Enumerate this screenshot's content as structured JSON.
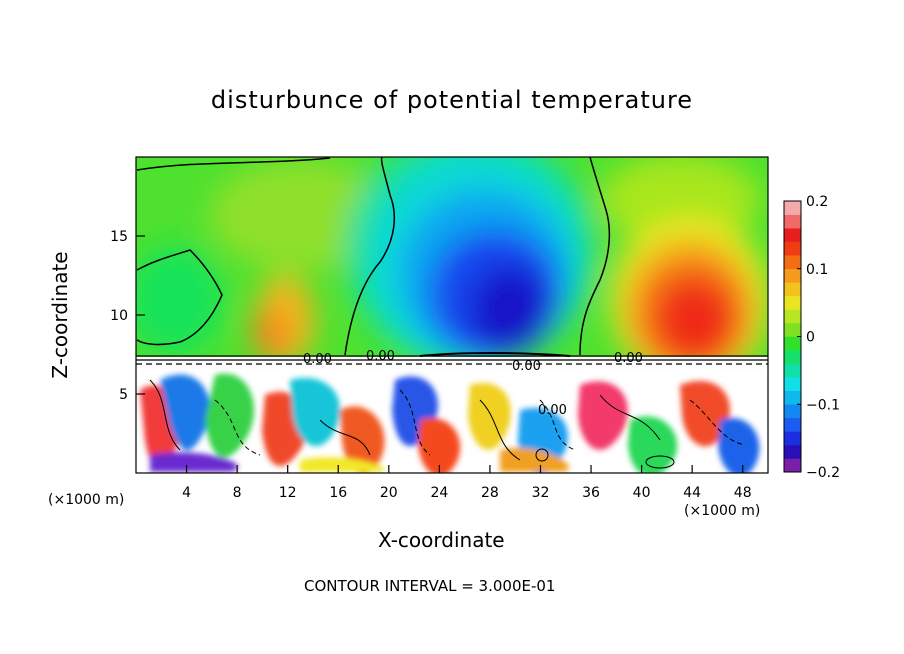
{
  "chart_data": {
    "type": "heatmap",
    "title": "disturbunce of potential temperature",
    "xlabel": "X-coordinate",
    "ylabel": "Z-coordinate",
    "x_unit": "(×1000 m)",
    "x_ticks": [
      4,
      8,
      12,
      16,
      20,
      24,
      28,
      32,
      36,
      40,
      44,
      48
    ],
    "y_ticks": [
      5,
      10,
      15
    ],
    "xlim": [
      0,
      50
    ],
    "ylim": [
      0,
      20
    ],
    "colorbar": {
      "ticks": [
        0.2,
        0.1,
        0,
        -0.1,
        -0.2
      ],
      "tick_labels": [
        "0.2",
        "0.1",
        "0",
        "−0.1",
        "−0.2"
      ],
      "range": [
        -0.2,
        0.2
      ]
    },
    "contour_labels": [
      "0.00",
      "0.00",
      "0.00",
      "0.00",
      "0.00"
    ],
    "footnote": "CONTOUR INTERVAL = 3.000E-01",
    "features": [
      {
        "x": 5.5,
        "z": 11.5,
        "value": 0.0,
        "kind": "closed-zero-contour"
      },
      {
        "x": 11,
        "z": 10,
        "value": 0.08,
        "kind": "warm-anomaly"
      },
      {
        "x": 29,
        "z": 12,
        "value": -0.18,
        "kind": "cold-anomaly"
      },
      {
        "x": 44,
        "z": 11,
        "value": 0.17,
        "kind": "warm-anomaly"
      }
    ],
    "grid": false,
    "legend": "colorbar-right"
  }
}
